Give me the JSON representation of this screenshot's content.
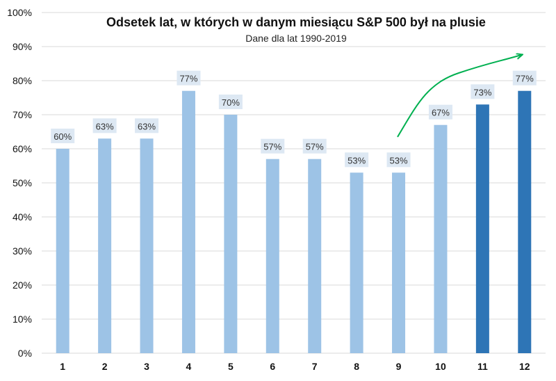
{
  "chart_data": {
    "type": "bar",
    "title": "Odsetek lat, w których w danym miesiącu S&P 500 był na plusie",
    "subtitle": "Dane dla lat 1990-2019",
    "categories": [
      "1",
      "2",
      "3",
      "4",
      "5",
      "6",
      "7",
      "8",
      "9",
      "10",
      "11",
      "12"
    ],
    "values": [
      60,
      63,
      63,
      77,
      70,
      57,
      57,
      53,
      53,
      67,
      73,
      77
    ],
    "data_labels": [
      "60%",
      "63%",
      "63%",
      "77%",
      "70%",
      "57%",
      "57%",
      "53%",
      "53%",
      "67%",
      "73%",
      "77%"
    ],
    "highlighted": [
      false,
      false,
      false,
      false,
      false,
      false,
      false,
      false,
      false,
      false,
      true,
      true
    ],
    "ylim": [
      0,
      100
    ],
    "yticks": [
      0,
      10,
      20,
      30,
      40,
      50,
      60,
      70,
      80,
      90,
      100
    ],
    "ytick_labels": [
      "0%",
      "10%",
      "20%",
      "30%",
      "40%",
      "50%",
      "60%",
      "70%",
      "80%",
      "90%",
      "100%"
    ],
    "grid": true,
    "legend": "none",
    "annotation": "arrow",
    "colors": {
      "bar": "#9dc3e6",
      "bar_highlight": "#2e75b6",
      "label_bg": "#dde8f3",
      "grid": "#d9d9d9",
      "arrow": "#00b050"
    }
  }
}
